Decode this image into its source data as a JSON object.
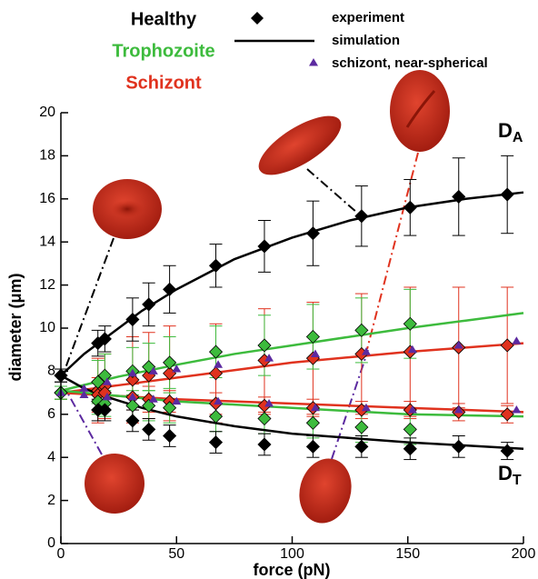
{
  "chart_data": {
    "type": "errorbar-line",
    "xlabel": "force (pN)",
    "ylabel": "diameter (μm)",
    "xlim": [
      0,
      200
    ],
    "xticks": [
      0,
      50,
      100,
      150,
      200
    ],
    "ylim": [
      0,
      20
    ],
    "yticks": [
      0,
      2,
      4,
      6,
      8,
      10,
      12,
      14,
      16,
      18,
      20
    ],
    "legend": {
      "groups": [
        {
          "name": "Healthy",
          "color": "#000000"
        },
        {
          "name": "Trophozoite",
          "color": "#3dbb3d"
        },
        {
          "name": "Schizont",
          "color": "#e0321e"
        }
      ],
      "experiment": "experiment",
      "simulation": "simulation",
      "near_spherical": {
        "name": "schizont, near-spherical",
        "color": "#5c2aa0"
      }
    },
    "annotations": [
      {
        "text": "D",
        "sub": "A"
      },
      {
        "text": "D",
        "sub": "T"
      }
    ],
    "series": [
      {
        "group": 2,
        "style": "diamond",
        "x": [
          0,
          16,
          19,
          31,
          38,
          47,
          67,
          88,
          109,
          130,
          151,
          172,
          193
        ],
        "values": [
          7.0,
          7.1,
          7.3,
          7.6,
          7.8,
          7.9,
          7.9,
          8.5,
          8.6,
          8.8,
          8.9,
          9.1,
          9.2
        ],
        "errors": [
          0.3,
          1.5,
          1.5,
          2.0,
          2.0,
          2.2,
          2.3,
          2.4,
          2.6,
          2.8,
          3.0,
          2.8,
          2.7
        ]
      },
      {
        "group": 2,
        "style": "diamond",
        "x": [
          0,
          16,
          19,
          31,
          38,
          47,
          67,
          88,
          109,
          130,
          151,
          172,
          193
        ],
        "values": [
          7.0,
          6.9,
          7.0,
          6.8,
          6.7,
          6.6,
          6.5,
          6.4,
          6.3,
          6.2,
          6.2,
          6.1,
          6.0
        ],
        "errors": [
          0.3,
          0.8,
          0.8,
          0.6,
          0.6,
          0.5,
          0.5,
          0.4,
          0.4,
          0.4,
          0.4,
          0.4,
          0.4
        ]
      },
      {
        "group": 1,
        "style": "diamond",
        "x": [
          0,
          16,
          19,
          31,
          38,
          47,
          67,
          88,
          109,
          130,
          151
        ],
        "values": [
          7.0,
          7.5,
          7.8,
          8.0,
          8.2,
          8.4,
          8.9,
          9.2,
          9.6,
          9.9,
          10.2
        ],
        "errors": [
          0.3,
          1.0,
          1.0,
          1.1,
          1.1,
          1.2,
          1.2,
          1.4,
          1.5,
          1.5,
          1.6
        ]
      },
      {
        "group": 1,
        "style": "diamond",
        "x": [
          0,
          16,
          19,
          31,
          38,
          47,
          67,
          88,
          109,
          130,
          151
        ],
        "values": [
          7.0,
          6.6,
          6.5,
          6.4,
          6.4,
          6.3,
          5.9,
          5.8,
          5.6,
          5.4,
          5.3
        ],
        "errors": [
          0.3,
          0.6,
          0.6,
          0.7,
          0.7,
          0.7,
          0.7,
          0.7,
          0.7,
          0.7,
          0.7
        ]
      },
      {
        "group": 0,
        "style": "diamond",
        "x": [
          0,
          16,
          19,
          31,
          38,
          47,
          67,
          88,
          109,
          130,
          151,
          172,
          193
        ],
        "values": [
          7.8,
          9.3,
          9.5,
          10.4,
          11.1,
          11.8,
          12.9,
          13.8,
          14.4,
          15.2,
          15.6,
          16.1,
          16.2
        ],
        "errors": [
          0.3,
          0.6,
          0.6,
          1.0,
          1.0,
          1.1,
          1.0,
          1.2,
          1.5,
          1.4,
          1.3,
          1.8,
          1.8
        ]
      },
      {
        "group": 0,
        "style": "diamond",
        "x": [
          0,
          16,
          19,
          31,
          38,
          47,
          67,
          88,
          109,
          130,
          151,
          172,
          193
        ],
        "values": [
          7.8,
          6.2,
          6.2,
          5.7,
          5.3,
          5.0,
          4.7,
          4.6,
          4.5,
          4.5,
          4.4,
          4.5,
          4.3
        ],
        "errors": [
          0.3,
          0.5,
          0.5,
          0.5,
          0.5,
          0.5,
          0.5,
          0.5,
          0.5,
          0.5,
          0.5,
          0.5,
          0.4
        ]
      },
      {
        "group": 2,
        "style": "line",
        "x": [
          0,
          25,
          50,
          75,
          100,
          125,
          150,
          175,
          200
        ],
        "values": [
          7.0,
          7.35,
          7.7,
          8.05,
          8.4,
          8.65,
          8.9,
          9.1,
          9.3
        ]
      },
      {
        "group": 2,
        "style": "line",
        "x": [
          0,
          25,
          50,
          75,
          100,
          125,
          150,
          175,
          200
        ],
        "values": [
          7.0,
          6.85,
          6.7,
          6.6,
          6.5,
          6.4,
          6.3,
          6.2,
          6.1
        ]
      },
      {
        "group": 1,
        "style": "line",
        "x": [
          0,
          25,
          50,
          75,
          100,
          125,
          150,
          175,
          200
        ],
        "values": [
          7.1,
          7.75,
          8.3,
          8.8,
          9.2,
          9.6,
          10.0,
          10.35,
          10.7
        ]
      },
      {
        "group": 1,
        "style": "line",
        "x": [
          0,
          25,
          50,
          75,
          100,
          125,
          150,
          175,
          200
        ],
        "values": [
          7.1,
          6.85,
          6.6,
          6.45,
          6.3,
          6.15,
          6.0,
          5.95,
          5.9
        ]
      },
      {
        "group": 0,
        "style": "line",
        "x": [
          0,
          10,
          20,
          35,
          50,
          75,
          100,
          125,
          150,
          175,
          200
        ],
        "values": [
          7.8,
          8.8,
          9.6,
          10.8,
          11.8,
          13.2,
          14.2,
          15.0,
          15.6,
          16.0,
          16.3
        ]
      },
      {
        "group": 0,
        "style": "line",
        "x": [
          0,
          10,
          20,
          35,
          50,
          75,
          100,
          125,
          150,
          175,
          200
        ],
        "values": [
          7.8,
          7.2,
          6.8,
          6.3,
          5.9,
          5.45,
          5.1,
          4.9,
          4.7,
          4.55,
          4.4
        ]
      },
      {
        "group": 3,
        "style": "triangle",
        "x": [
          0,
          10,
          20,
          31,
          40,
          50,
          68,
          90,
          110,
          132,
          152,
          172,
          197
        ],
        "values": [
          7.0,
          7.2,
          7.5,
          7.9,
          8.0,
          8.1,
          8.3,
          8.6,
          8.8,
          8.9,
          9.0,
          9.2,
          9.4
        ]
      },
      {
        "group": 3,
        "style": "triangle",
        "x": [
          0,
          10,
          20,
          31,
          40,
          50,
          68,
          90,
          110,
          132,
          152,
          172,
          197
        ],
        "values": [
          7.0,
          6.9,
          6.8,
          6.8,
          6.7,
          6.6,
          6.6,
          6.5,
          6.3,
          6.3,
          6.2,
          6.2,
          6.2
        ]
      }
    ]
  }
}
